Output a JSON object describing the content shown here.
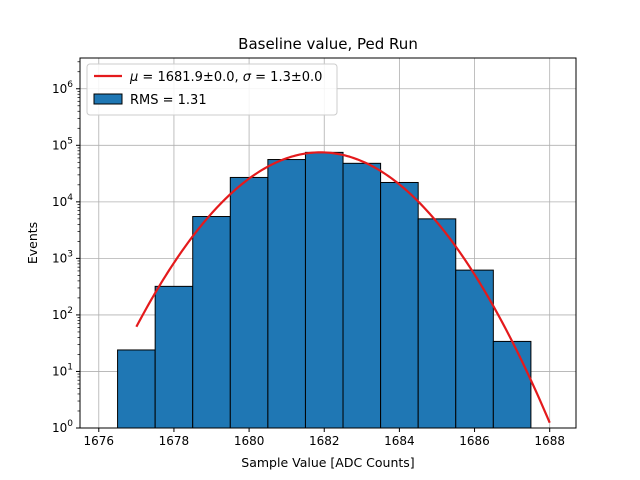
{
  "chart_data": {
    "type": "bar",
    "title": "Baseline value, Ped Run",
    "xlabel": "Sample Value [ADC Counts]",
    "ylabel": "Events",
    "xlim": [
      1675.5,
      1688.7
    ],
    "ylim": [
      1,
      3500000
    ],
    "yscale": "log",
    "grid": true,
    "legend_position": "top-left",
    "x_ticks": [
      1676,
      1678,
      1680,
      1682,
      1684,
      1686,
      1688
    ],
    "y_ticks": [
      1,
      10,
      100,
      1000,
      10000,
      100000,
      1000000
    ],
    "y_tick_exponents": [
      "0",
      "1",
      "2",
      "3",
      "4",
      "5",
      "6"
    ],
    "y_tick_base": "10",
    "bins": [
      {
        "lo": 1676.5,
        "hi": 1677.5,
        "count": 24
      },
      {
        "lo": 1677.5,
        "hi": 1678.5,
        "count": 320
      },
      {
        "lo": 1678.5,
        "hi": 1679.5,
        "count": 5500
      },
      {
        "lo": 1679.5,
        "hi": 1680.5,
        "count": 27000
      },
      {
        "lo": 1680.5,
        "hi": 1681.5,
        "count": 56000
      },
      {
        "lo": 1681.5,
        "hi": 1682.5,
        "count": 75000
      },
      {
        "lo": 1682.5,
        "hi": 1683.5,
        "count": 48000
      },
      {
        "lo": 1683.5,
        "hi": 1684.5,
        "count": 22000
      },
      {
        "lo": 1684.5,
        "hi": 1685.5,
        "count": 5000
      },
      {
        "lo": 1685.5,
        "hi": 1686.5,
        "count": 620
      },
      {
        "lo": 1686.5,
        "hi": 1687.5,
        "count": 34
      }
    ],
    "fit": {
      "mu": 1681.9,
      "sigma": 1.3,
      "amplitude": 75000,
      "x_range": [
        1677,
        1688
      ],
      "color": "#e41a1c"
    },
    "bar_color": "#1f77b4",
    "legend": [
      {
        "label_parts": [
          "μ",
          " = 1681.9±0.0, ",
          "σ",
          " = 1.3±0.0"
        ],
        "kind": "line",
        "color": "#e41a1c"
      },
      {
        "label": "RMS = 1.31",
        "kind": "patch",
        "color": "#1f77b4"
      }
    ]
  }
}
